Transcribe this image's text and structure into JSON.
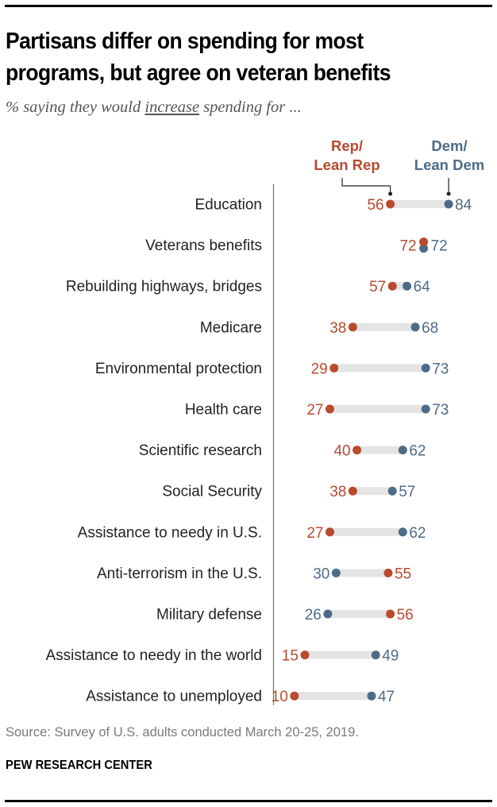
{
  "chart_data": {
    "type": "dot-plot",
    "title": "Partisans differ on spending for most programs, but agree on veteran benefits",
    "subtitle_parts": [
      "% saying they would ",
      "increase",
      " spending for ..."
    ],
    "xlabel": "",
    "ylabel": "",
    "xlim": [
      0,
      100
    ],
    "grid": false,
    "legend": {
      "placement": "top-right"
    },
    "series": [
      {
        "name": "Rep/ Lean Rep",
        "label_lines": [
          "Rep/",
          "Lean Rep"
        ],
        "color": "#b84a2f",
        "values": [
          56,
          72,
          57,
          38,
          29,
          27,
          40,
          38,
          27,
          55,
          56,
          15,
          10
        ]
      },
      {
        "name": "Dem/ Lean Dem",
        "label_lines": [
          "Dem/",
          "Lean Dem"
        ],
        "color": "#4d6b87",
        "values": [
          84,
          72,
          64,
          68,
          73,
          73,
          62,
          57,
          62,
          30,
          26,
          49,
          47
        ]
      }
    ],
    "categories": [
      "Education",
      "Veterans benefits",
      "Rebuilding highways, bridges",
      "Medicare",
      "Environmental protection",
      "Health care",
      "Scientific research",
      "Social Security",
      "Assistance to needy in U.S.",
      "Anti-terrorism in the U.S.",
      "Military defense",
      "Assistance to needy in the world",
      "Assistance to unemployed"
    ],
    "connector_color": "#e4e4e4",
    "source": "Source: Survey of U.S. adults conducted March 20-25, 2019.",
    "brand": "PEW RESEARCH CENTER"
  }
}
